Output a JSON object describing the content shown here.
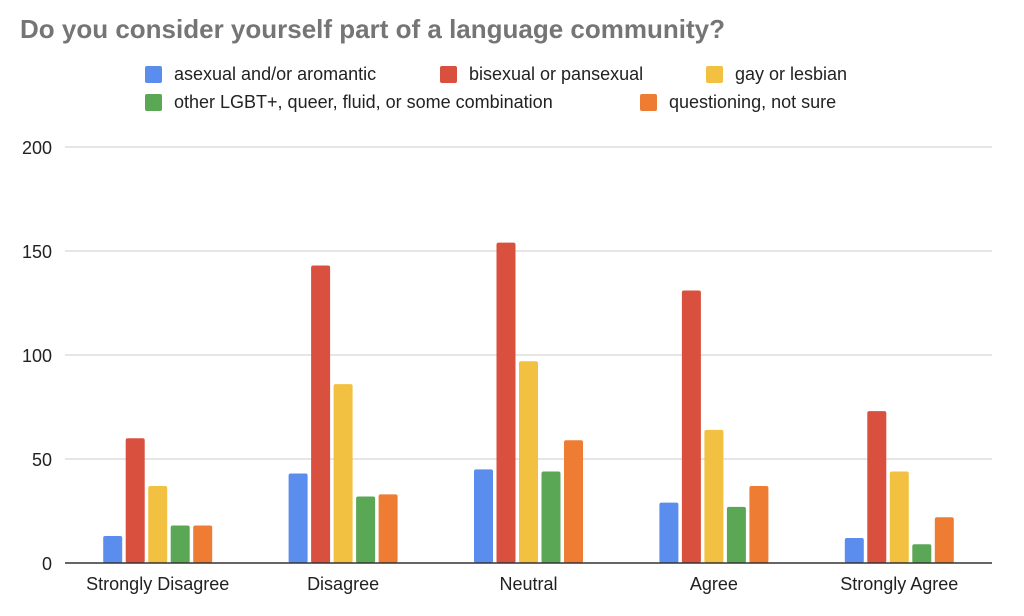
{
  "chart_data": {
    "type": "bar",
    "title": "Do you consider yourself part of a language community?",
    "categories": [
      "Strongly Disagree",
      "Disagree",
      "Neutral",
      "Agree",
      "Strongly Agree"
    ],
    "series": [
      {
        "name": "asexual and/or aromantic",
        "color": "#5b8def",
        "values": [
          13,
          43,
          45,
          29,
          12
        ]
      },
      {
        "name": "bisexual or pansexual",
        "color": "#d9503f",
        "values": [
          60,
          143,
          154,
          131,
          73
        ]
      },
      {
        "name": "gay or lesbian",
        "color": "#f2c142",
        "values": [
          37,
          86,
          97,
          64,
          44
        ]
      },
      {
        "name": "other LGBT+, queer, fluid, or some combination",
        "color": "#5aa755",
        "values": [
          18,
          32,
          44,
          27,
          9
        ]
      },
      {
        "name": "questioning, not sure",
        "color": "#ef7c33",
        "values": [
          18,
          33,
          59,
          37,
          22
        ]
      }
    ],
    "ylim": [
      0,
      200
    ],
    "yticks": [
      0,
      50,
      100,
      150,
      200
    ],
    "grid": true,
    "legend_position": "top"
  }
}
